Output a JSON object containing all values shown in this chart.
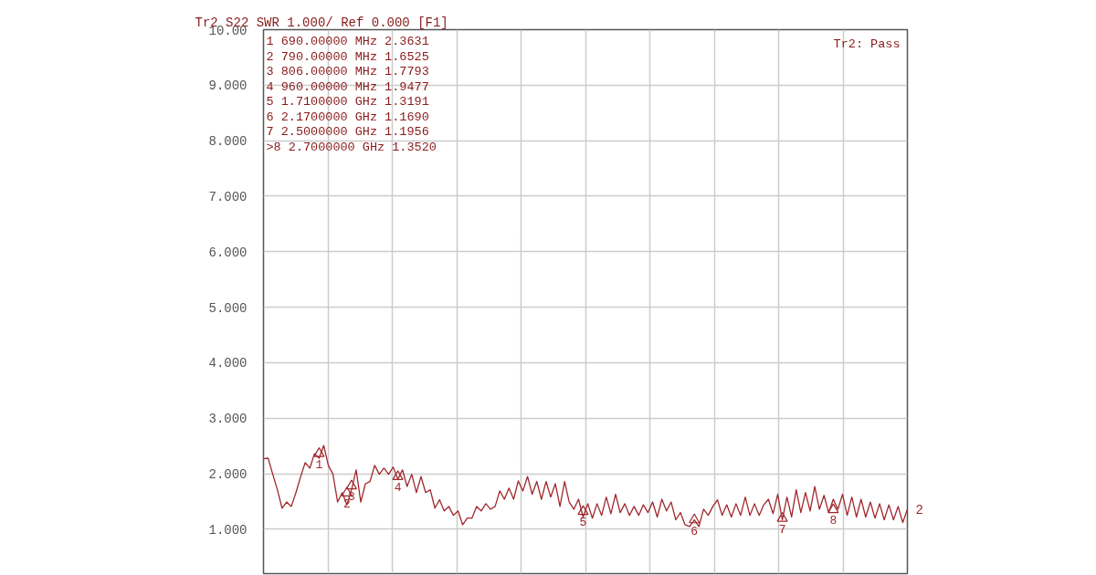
{
  "chart_data": {
    "type": "line",
    "title": "Tr2 S22 SWR 1.000/ Ref 0.000 [F1]",
    "categories": [
      null,
      null,
      null,
      null,
      null,
      null,
      null,
      null,
      null,
      null,
      null,
      null,
      null,
      null,
      null,
      null,
      null,
      null,
      null,
      null,
      null,
      null,
      null,
      null,
      null,
      null,
      null,
      null,
      null,
      null,
      null,
      null,
      null,
      null,
      null,
      null,
      null,
      null,
      null,
      null,
      null,
      null,
      null,
      null,
      null,
      null,
      null,
      null,
      null,
      null,
      null,
      null,
      null,
      null,
      null,
      null,
      null,
      null,
      null,
      null,
      null,
      null,
      null,
      null,
      null,
      null,
      null,
      null,
      null,
      null,
      null,
      null,
      null,
      null,
      null,
      null,
      null,
      null,
      null,
      null,
      null,
      null,
      null,
      null,
      null,
      null,
      null,
      null,
      null,
      null,
      null,
      null,
      null,
      null,
      null,
      null,
      null,
      null,
      null,
      null,
      null,
      null,
      null,
      null,
      null,
      null,
      null,
      null,
      null,
      null,
      null,
      null,
      null,
      null,
      null,
      null,
      null,
      null,
      null,
      null,
      null,
      null,
      null,
      null,
      null,
      null,
      null,
      null,
      null,
      null,
      null,
      null,
      null,
      null,
      null,
      null,
      null,
      null,
      null,
      null
    ],
    "series": [
      {
        "color": "#a0282d",
        "values": [
          2.27,
          2.28,
          1.99,
          1.71,
          1.38,
          1.49,
          1.41,
          1.66,
          1.94,
          2.2,
          2.1,
          2.36,
          2.28,
          2.51,
          2.15,
          1.99,
          1.49,
          1.66,
          1.44,
          1.71,
          2.07,
          1.49,
          1.82,
          1.86,
          2.15,
          1.99,
          2.1,
          1.99,
          2.12,
          1.9,
          2.07,
          1.77,
          1.99,
          1.66,
          1.95,
          1.66,
          1.71,
          1.38,
          1.53,
          1.33,
          1.41,
          1.25,
          1.33,
          1.08,
          1.2,
          1.2,
          1.41,
          1.33,
          1.46,
          1.36,
          1.41,
          1.69,
          1.54,
          1.74,
          1.54,
          1.87,
          1.69,
          1.95,
          1.63,
          1.86,
          1.54,
          1.86,
          1.58,
          1.82,
          1.41,
          1.86,
          1.49,
          1.36,
          1.54,
          1.22,
          1.46,
          1.2,
          1.46,
          1.25,
          1.58,
          1.28,
          1.63,
          1.3,
          1.46,
          1.25,
          1.41,
          1.25,
          1.44,
          1.3,
          1.49,
          1.22,
          1.54,
          1.33,
          1.49,
          1.17,
          1.3,
          1.08,
          1.05,
          1.17,
          1.05,
          1.36,
          1.25,
          1.41,
          1.53,
          1.25,
          1.44,
          1.22,
          1.46,
          1.25,
          1.58,
          1.25,
          1.46,
          1.25,
          1.44,
          1.54,
          1.28,
          1.63,
          1.17,
          1.58,
          1.22,
          1.71,
          1.3,
          1.66,
          1.33,
          1.77,
          1.36,
          1.61,
          1.3,
          1.54,
          1.36,
          1.63,
          1.25,
          1.58,
          1.22,
          1.54,
          1.22,
          1.49,
          1.2,
          1.46,
          1.17,
          1.44,
          1.17,
          1.41,
          1.12,
          1.36
        ]
      },
      {
        "type": "scatter",
        "marker": "triangle",
        "color": "#a0282d",
        "name": "1",
        "values": [
          null,
          null,
          null,
          null,
          null,
          null,
          null,
          null,
          null,
          null,
          null,
          null,
          2.3631,
          null,
          null,
          null,
          null,
          null,
          null,
          null,
          null,
          null,
          null,
          null,
          null,
          null,
          null,
          null,
          null,
          null,
          null,
          null,
          null,
          null,
          null,
          null,
          null,
          null,
          null,
          null,
          null,
          null,
          null,
          null,
          null,
          null,
          null,
          null,
          null,
          null,
          null,
          null,
          null,
          null,
          null,
          null,
          null,
          null,
          null,
          null,
          null,
          null,
          null,
          null,
          null,
          null,
          null,
          null,
          null,
          null,
          null,
          null,
          null,
          null,
          null,
          null,
          null,
          null,
          null,
          null,
          null,
          null,
          null,
          null,
          null,
          null,
          null,
          null,
          null,
          null,
          null,
          null,
          null,
          null,
          null,
          null,
          null,
          null,
          null,
          null,
          null,
          null,
          null,
          null,
          null,
          null,
          null,
          null,
          null,
          null,
          null,
          null,
          null,
          null,
          null,
          null,
          null,
          null,
          null,
          null,
          null,
          null,
          null,
          null,
          null,
          null,
          null,
          null,
          null,
          null,
          null,
          null,
          null,
          null,
          null,
          null,
          null,
          null,
          null,
          null
        ]
      },
      {
        "type": "scatter",
        "marker": "triangle",
        "color": "#a0282d",
        "name": "2",
        "values": [
          null,
          null,
          null,
          null,
          null,
          null,
          null,
          null,
          null,
          null,
          null,
          null,
          null,
          null,
          null,
          null,
          null,
          null,
          1.6525,
          null,
          null,
          null,
          null,
          null,
          null,
          null,
          null,
          null,
          null,
          null,
          null,
          null,
          null,
          null,
          null,
          null,
          null,
          null,
          null,
          null,
          null,
          null,
          null,
          null,
          null,
          null,
          null,
          null,
          null,
          null,
          null,
          null,
          null,
          null,
          null,
          null,
          null,
          null,
          null,
          null,
          null,
          null,
          null,
          null,
          null,
          null,
          null,
          null,
          null,
          null,
          null,
          null,
          null,
          null,
          null,
          null,
          null,
          null,
          null,
          null,
          null,
          null,
          null,
          null,
          null,
          null,
          null,
          null,
          null,
          null,
          null,
          null,
          null,
          null,
          null,
          null,
          null,
          null,
          null,
          null,
          null,
          null,
          null,
          null,
          null,
          null,
          null,
          null,
          null,
          null,
          null,
          null,
          null,
          null,
          null,
          null,
          null,
          null,
          null,
          null,
          null,
          null,
          null,
          null,
          null,
          null,
          null,
          null,
          null,
          null,
          null,
          null,
          null,
          null,
          null,
          null,
          null,
          null,
          null,
          null
        ]
      },
      {
        "type": "scatter",
        "marker": "triangle",
        "color": "#a0282d",
        "name": "3",
        "values": [
          null,
          null,
          null,
          null,
          null,
          null,
          null,
          null,
          null,
          null,
          null,
          null,
          null,
          null,
          null,
          null,
          null,
          null,
          null,
          1.7793,
          null,
          null,
          null,
          null,
          null,
          null,
          null,
          null,
          null,
          null,
          null,
          null,
          null,
          null,
          null,
          null,
          null,
          null,
          null,
          null,
          null,
          null,
          null,
          null,
          null,
          null,
          null,
          null,
          null,
          null,
          null,
          null,
          null,
          null,
          null,
          null,
          null,
          null,
          null,
          null,
          null,
          null,
          null,
          null,
          null,
          null,
          null,
          null,
          null,
          null,
          null,
          null,
          null,
          null,
          null,
          null,
          null,
          null,
          null,
          null,
          null,
          null,
          null,
          null,
          null,
          null,
          null,
          null,
          null,
          null,
          null,
          null,
          null,
          null,
          null,
          null,
          null,
          null,
          null,
          null,
          null,
          null,
          null,
          null,
          null,
          null,
          null,
          null,
          null,
          null,
          null,
          null,
          null,
          null,
          null,
          null,
          null,
          null,
          null,
          null,
          null,
          null,
          null,
          null,
          null,
          null,
          null,
          null,
          null,
          null,
          null,
          null,
          null,
          null,
          null,
          null,
          null,
          null,
          null,
          null
        ]
      },
      {
        "type": "scatter",
        "marker": "triangle",
        "color": "#a0282d",
        "name": "4",
        "values": [
          null,
          null,
          null,
          null,
          null,
          null,
          null,
          null,
          null,
          null,
          null,
          null,
          null,
          null,
          null,
          null,
          null,
          null,
          null,
          null,
          null,
          null,
          null,
          null,
          null,
          null,
          null,
          null,
          null,
          1.9477,
          null,
          null,
          null,
          null,
          null,
          null,
          null,
          null,
          null,
          null,
          null,
          null,
          null,
          null,
          null,
          null,
          null,
          null,
          null,
          null,
          null,
          null,
          null,
          null,
          null,
          null,
          null,
          null,
          null,
          null,
          null,
          null,
          null,
          null,
          null,
          null,
          null,
          null,
          null,
          null,
          null,
          null,
          null,
          null,
          null,
          null,
          null,
          null,
          null,
          null,
          null,
          null,
          null,
          null,
          null,
          null,
          null,
          null,
          null,
          null,
          null,
          null,
          null,
          null,
          null,
          null,
          null,
          null,
          null,
          null,
          null,
          null,
          null,
          null,
          null,
          null,
          null,
          null,
          null,
          null,
          null,
          null,
          null,
          null,
          null,
          null,
          null,
          null,
          null,
          null,
          null,
          null,
          null,
          null,
          null,
          null,
          null,
          null,
          null,
          null,
          null,
          null,
          null,
          null,
          null,
          null,
          null,
          null,
          null,
          null
        ]
      },
      {
        "type": "scatter",
        "marker": "triangle",
        "color": "#a0282d",
        "name": "5",
        "values": [
          null,
          null,
          null,
          null,
          null,
          null,
          null,
          null,
          null,
          null,
          null,
          null,
          null,
          null,
          null,
          null,
          null,
          null,
          null,
          null,
          null,
          null,
          null,
          null,
          null,
          null,
          null,
          null,
          null,
          null,
          null,
          null,
          null,
          null,
          null,
          null,
          null,
          null,
          null,
          null,
          null,
          null,
          null,
          null,
          null,
          null,
          null,
          null,
          null,
          null,
          null,
          null,
          null,
          null,
          null,
          null,
          null,
          null,
          null,
          null,
          null,
          null,
          null,
          null,
          null,
          null,
          null,
          null,
          null,
          1.3191,
          null,
          null,
          null,
          null,
          null,
          null,
          null,
          null,
          null,
          null,
          null,
          null,
          null,
          null,
          null,
          null,
          null,
          null,
          null,
          null,
          null,
          null,
          null,
          null,
          null,
          null,
          null,
          null,
          null,
          null,
          null,
          null,
          null,
          null,
          null,
          null,
          null,
          null,
          null,
          null,
          null,
          null,
          null,
          null,
          null,
          null,
          null,
          null,
          null,
          null,
          null,
          null,
          null,
          null,
          null,
          null,
          null,
          null,
          null,
          null,
          null,
          null,
          null,
          null,
          null,
          null,
          null,
          null,
          null,
          null
        ]
      },
      {
        "type": "scatter",
        "marker": "triangle",
        "color": "#a0282d",
        "name": "6",
        "values": [
          null,
          null,
          null,
          null,
          null,
          null,
          null,
          null,
          null,
          null,
          null,
          null,
          null,
          null,
          null,
          null,
          null,
          null,
          null,
          null,
          null,
          null,
          null,
          null,
          null,
          null,
          null,
          null,
          null,
          null,
          null,
          null,
          null,
          null,
          null,
          null,
          null,
          null,
          null,
          null,
          null,
          null,
          null,
          null,
          null,
          null,
          null,
          null,
          null,
          null,
          null,
          null,
          null,
          null,
          null,
          null,
          null,
          null,
          null,
          null,
          null,
          null,
          null,
          null,
          null,
          null,
          null,
          null,
          null,
          null,
          null,
          null,
          null,
          null,
          null,
          null,
          null,
          null,
          null,
          null,
          null,
          null,
          null,
          null,
          null,
          null,
          null,
          null,
          null,
          null,
          null,
          null,
          null,
          1.169,
          null,
          null,
          null,
          null,
          null,
          null,
          null,
          null,
          null,
          null,
          null,
          null,
          null,
          null,
          null,
          null,
          null,
          null,
          null,
          null,
          null,
          null,
          null,
          null,
          null,
          null,
          null,
          null,
          null,
          null,
          null,
          null,
          null,
          null,
          null,
          null,
          null,
          null,
          null,
          null,
          null,
          null,
          null,
          null,
          null,
          null
        ]
      },
      {
        "type": "scatter",
        "marker": "triangle",
        "color": "#a0282d",
        "name": "7",
        "values": [
          null,
          null,
          null,
          null,
          null,
          null,
          null,
          null,
          null,
          null,
          null,
          null,
          null,
          null,
          null,
          null,
          null,
          null,
          null,
          null,
          null,
          null,
          null,
          null,
          null,
          null,
          null,
          null,
          null,
          null,
          null,
          null,
          null,
          null,
          null,
          null,
          null,
          null,
          null,
          null,
          null,
          null,
          null,
          null,
          null,
          null,
          null,
          null,
          null,
          null,
          null,
          null,
          null,
          null,
          null,
          null,
          null,
          null,
          null,
          null,
          null,
          null,
          null,
          null,
          null,
          null,
          null,
          null,
          null,
          null,
          null,
          null,
          null,
          null,
          null,
          null,
          null,
          null,
          null,
          null,
          null,
          null,
          null,
          null,
          null,
          null,
          null,
          null,
          null,
          null,
          null,
          null,
          null,
          null,
          null,
          null,
          null,
          null,
          null,
          null,
          null,
          null,
          null,
          null,
          null,
          null,
          null,
          null,
          null,
          null,
          null,
          null,
          1.1956,
          null,
          null,
          null,
          null,
          null,
          null,
          null,
          null,
          null,
          null,
          null,
          null,
          null,
          null,
          null,
          null,
          null,
          null,
          null,
          null,
          null,
          null,
          null,
          null,
          null,
          null,
          null
        ]
      },
      {
        "type": "scatter",
        "marker": "triangle",
        "color": "#a0282d",
        "name": "8",
        "values": [
          null,
          null,
          null,
          null,
          null,
          null,
          null,
          null,
          null,
          null,
          null,
          null,
          null,
          null,
          null,
          null,
          null,
          null,
          null,
          null,
          null,
          null,
          null,
          null,
          null,
          null,
          null,
          null,
          null,
          null,
          null,
          null,
          null,
          null,
          null,
          null,
          null,
          null,
          null,
          null,
          null,
          null,
          null,
          null,
          null,
          null,
          null,
          null,
          null,
          null,
          null,
          null,
          null,
          null,
          null,
          null,
          null,
          null,
          null,
          null,
          null,
          null,
          null,
          null,
          null,
          null,
          null,
          null,
          null,
          null,
          null,
          null,
          null,
          null,
          null,
          null,
          null,
          null,
          null,
          null,
          null,
          null,
          null,
          null,
          null,
          null,
          null,
          null,
          null,
          null,
          null,
          null,
          null,
          null,
          null,
          null,
          null,
          null,
          null,
          null,
          null,
          null,
          null,
          null,
          null,
          null,
          null,
          null,
          null,
          null,
          null,
          null,
          null,
          null,
          null,
          null,
          null,
          null,
          null,
          null,
          null,
          null,
          null,
          1.352,
          null,
          null,
          null,
          null,
          null,
          null,
          null,
          null,
          null,
          null,
          null,
          null,
          null,
          null,
          null,
          null
        ]
      }
    ],
    "ylim": [
      0.2,
      10
    ],
    "yticks": [
      {
        "value": 1,
        "label": "1.000"
      },
      {
        "value": 2,
        "label": "2.000"
      },
      {
        "value": 3,
        "label": "3.000"
      },
      {
        "value": 4,
        "label": "4.000"
      },
      {
        "value": 5,
        "label": "5.000"
      },
      {
        "value": 6,
        "label": "6.000"
      },
      {
        "value": 7,
        "label": "7.000"
      },
      {
        "value": 8,
        "label": "8.000"
      },
      {
        "value": 9,
        "label": "9.000"
      },
      {
        "value": 10,
        "label": "10.00"
      }
    ],
    "grid": true,
    "tick_labels": "y",
    "annotations": [
      " 1  690.00000 MHz  2.3631",
      " 2  790.00000 MHz  1.6525",
      " 3  806.00000 MHz  1.7793",
      " 4  960.00000 MHz  1.9477",
      " 5  1.7100000 GHz  1.3191",
      " 6  2.1700000 GHz  1.1690",
      " 7  2.5000000 GHz  1.1956",
      ">8  2.7000000 GHz  1.3520",
      "Tr2: Pass",
      "2"
    ]
  }
}
